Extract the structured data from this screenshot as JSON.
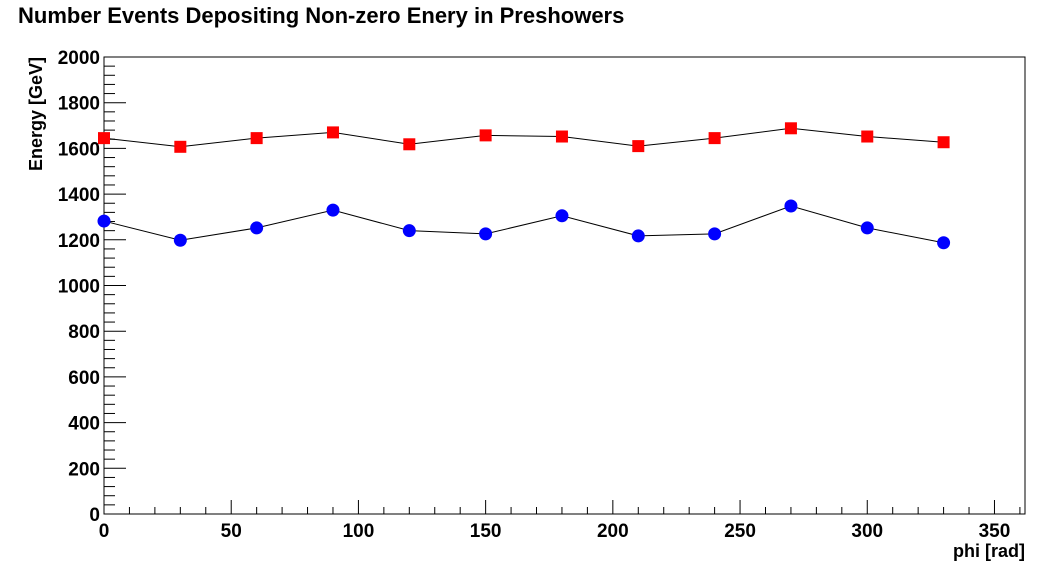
{
  "chart_data": {
    "type": "scatter",
    "title": "Number Events Depositing Non-zero Enery in Preshowers",
    "xlabel": "phi [rad]",
    "ylabel": "Energy [GeV]",
    "xlim": [
      0,
      362
    ],
    "ylim": [
      0,
      2000
    ],
    "x_ticks": [
      0,
      50,
      100,
      150,
      200,
      250,
      300,
      350
    ],
    "y_ticks": [
      0,
      200,
      400,
      600,
      800,
      1000,
      1200,
      1400,
      1600,
      1800,
      2000
    ],
    "x": [
      0,
      30,
      60,
      90,
      120,
      150,
      180,
      210,
      240,
      270,
      300,
      330
    ],
    "series": [
      {
        "marker": "square",
        "color": "#ff0000",
        "values": [
          1645,
          1607,
          1645,
          1670,
          1618,
          1657,
          1652,
          1610,
          1645,
          1688,
          1652,
          1627
        ]
      },
      {
        "marker": "circle",
        "color": "#0000ff",
        "values": [
          1282,
          1198,
          1252,
          1330,
          1240,
          1226,
          1305,
          1217,
          1226,
          1348,
          1252,
          1187
        ]
      }
    ],
    "line_color": "#000000",
    "grid": false,
    "legend": "none"
  }
}
